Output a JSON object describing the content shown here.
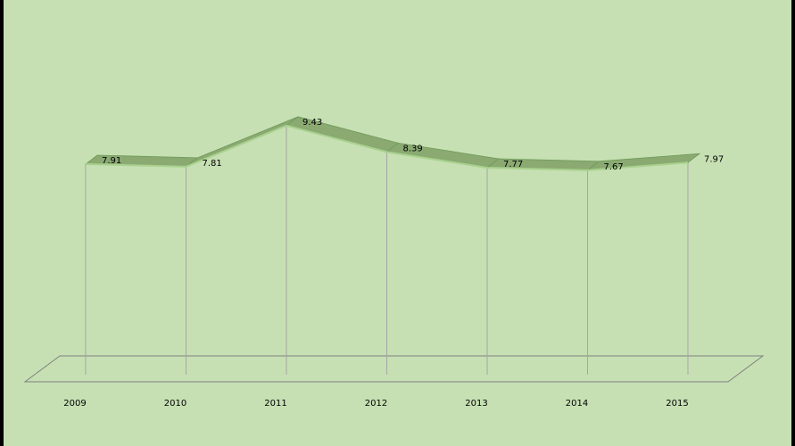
{
  "chart_data": {
    "type": "line",
    "style": "3d-ribbon",
    "categories": [
      "2009",
      "2010",
      "2011",
      "2012",
      "2013",
      "2014",
      "2015"
    ],
    "values": [
      7.91,
      7.81,
      9.43,
      8.39,
      7.77,
      7.67,
      7.97
    ],
    "value_labels": [
      "7.91",
      "7.81",
      "9.43",
      "8.39",
      "7.77",
      "7.67",
      "7.97"
    ],
    "drop_lines": true,
    "legend": "none",
    "grid": false,
    "colors": {
      "background": "#c6e0b3",
      "ribbon_top": "#8aaa72",
      "ribbon_front": "#6f9a58",
      "ribbon_edge": "#a9d18e",
      "drop_line": "#a6a6a6",
      "floor_line": "#808080"
    }
  }
}
